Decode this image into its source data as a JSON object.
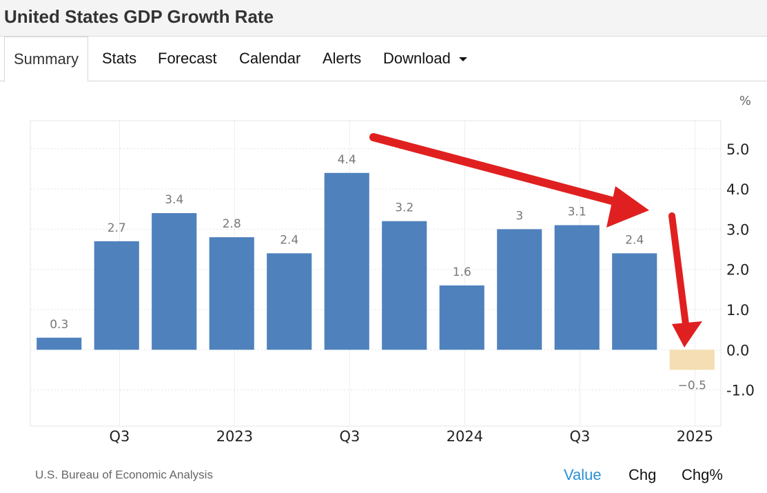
{
  "header": {
    "title": "United States GDP Growth Rate"
  },
  "tabs": [
    {
      "label": "Summary",
      "active": true
    },
    {
      "label": "Stats"
    },
    {
      "label": "Forecast"
    },
    {
      "label": "Calendar"
    },
    {
      "label": "Alerts"
    },
    {
      "label": "Download",
      "has_dropdown": true
    }
  ],
  "chart_data": {
    "type": "bar",
    "unit_label": "%",
    "x_tick_labels": [
      "Q3",
      "2023",
      "Q3",
      "2024",
      "Q3",
      "2025"
    ],
    "values": [
      0.3,
      2.7,
      3.4,
      2.8,
      2.4,
      4.4,
      3.2,
      1.6,
      3,
      3.1,
      2.4,
      -0.5
    ],
    "value_labels": [
      "0.3",
      "2.7",
      "3.4",
      "2.8",
      "2.4",
      "4.4",
      "3.2",
      "1.6",
      "3",
      "3.1",
      "2.4",
      "−0.5"
    ],
    "highlight_last": true,
    "y_ticks": [
      "5.0",
      "4.0",
      "3.0",
      "2.0",
      "1.0",
      "0.0",
      "-1.0"
    ],
    "ylim": [
      -1.9,
      5.7
    ],
    "grid": true,
    "colors": {
      "bar": "#4f81bd",
      "highlight_bar": "#f5deb3",
      "arrow": "#e02020"
    }
  },
  "footer": {
    "source": "U.S. Bureau of Economic Analysis",
    "links": [
      "Value",
      "Chg",
      "Chg%"
    ],
    "active_link": "Value"
  }
}
